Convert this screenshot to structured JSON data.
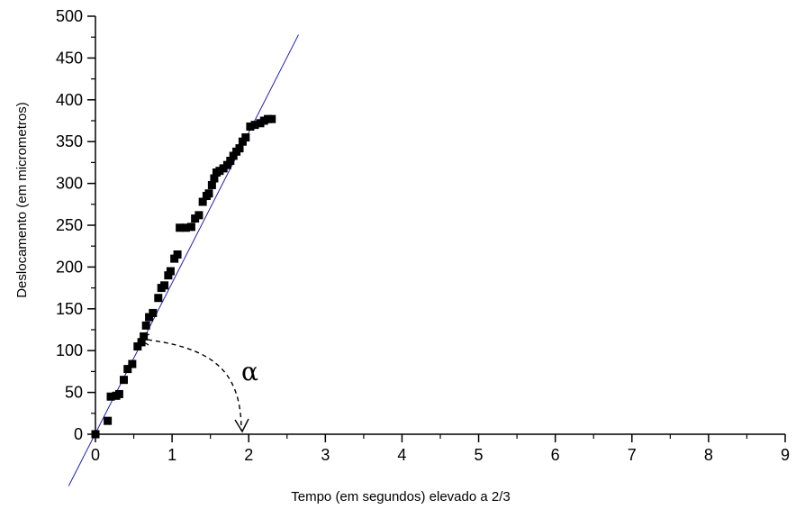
{
  "chart_data": {
    "type": "scatter",
    "title": "",
    "xlabel": "Tempo (em segundos) elevado a 2/3",
    "ylabel": "Deslocamento (em micrometros)",
    "xlim": [
      0,
      9
    ],
    "ylim": [
      0,
      500
    ],
    "x_ticks": [
      0,
      1,
      2,
      3,
      4,
      5,
      6,
      7,
      8,
      9
    ],
    "y_ticks": [
      0,
      50,
      100,
      150,
      200,
      250,
      300,
      350,
      400,
      450,
      500
    ],
    "x_tick_labels": [
      "0",
      "1",
      "2",
      "3",
      "4",
      "5",
      "6",
      "7",
      "8",
      "9"
    ],
    "y_tick_labels": [
      "0",
      "50",
      "100",
      "150",
      "200",
      "250",
      "300",
      "350",
      "400",
      "450",
      "500"
    ],
    "grid": false,
    "colors": {
      "points": "#000000",
      "fit_line": "#1f1fb4",
      "axes": "#000000"
    },
    "series": [
      {
        "type": "scatter",
        "marker": "square",
        "x": [
          0.0,
          0.16,
          0.2,
          0.27,
          0.31,
          0.37,
          0.42,
          0.48,
          0.55,
          0.6,
          0.63,
          0.66,
          0.7,
          0.75,
          0.82,
          0.86,
          0.9,
          0.95,
          0.98,
          1.03,
          1.07,
          1.1,
          1.18,
          1.25,
          1.3,
          1.35,
          1.4,
          1.45,
          1.48,
          1.52,
          1.55,
          1.58,
          1.62,
          1.67,
          1.72,
          1.76,
          1.8,
          1.84,
          1.88,
          1.92,
          1.96,
          2.02,
          2.08,
          2.15,
          2.2,
          2.25,
          2.3
        ],
        "y": [
          0,
          16,
          45,
          46,
          48,
          65,
          78,
          84,
          105,
          110,
          117,
          130,
          140,
          145,
          163,
          175,
          178,
          190,
          195,
          210,
          215,
          247,
          247,
          248,
          258,
          262,
          278,
          285,
          288,
          298,
          306,
          313,
          315,
          318,
          322,
          327,
          333,
          338,
          342,
          350,
          355,
          368,
          370,
          372,
          375,
          377,
          377
        ]
      },
      {
        "type": "line",
        "x": [
          -0.35,
          2.65
        ],
        "y": [
          -62,
          478
        ]
      }
    ],
    "annotations": [
      {
        "text": "α",
        "x": 2.0,
        "y": 75
      }
    ]
  }
}
